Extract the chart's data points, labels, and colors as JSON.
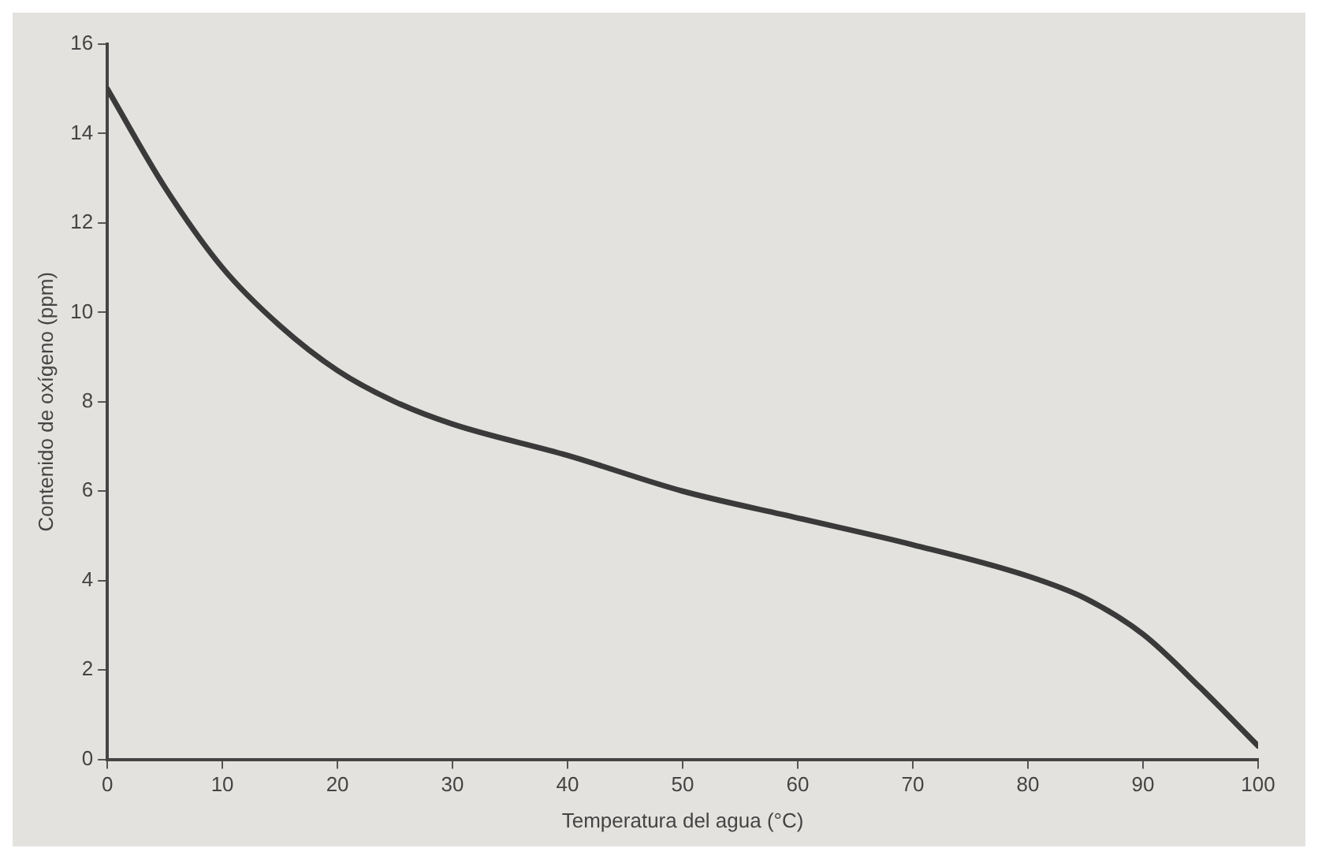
{
  "chart_data": {
    "type": "line",
    "xlabel": "Temperatura del agua (°C)",
    "ylabel": "Contenido de oxígeno (ppm)",
    "x": [
      0,
      5,
      10,
      15,
      20,
      25,
      30,
      40,
      50,
      60,
      70,
      80,
      85,
      90,
      95,
      100
    ],
    "series": [
      {
        "color": "#3a3a3a",
        "values": [
          15.0,
          12.8,
          11.0,
          9.7,
          8.7,
          8.0,
          7.5,
          6.8,
          6.0,
          5.4,
          4.8,
          4.1,
          3.6,
          2.8,
          1.6,
          0.3
        ]
      }
    ],
    "xlim": [
      0,
      100
    ],
    "xticks": [
      0,
      10,
      20,
      30,
      40,
      50,
      60,
      70,
      80,
      90,
      100
    ],
    "ylim": [
      0,
      16
    ],
    "yticks": [
      0,
      2,
      4,
      6,
      8,
      10,
      12,
      14,
      16
    ],
    "grid": false,
    "legend": false
  }
}
